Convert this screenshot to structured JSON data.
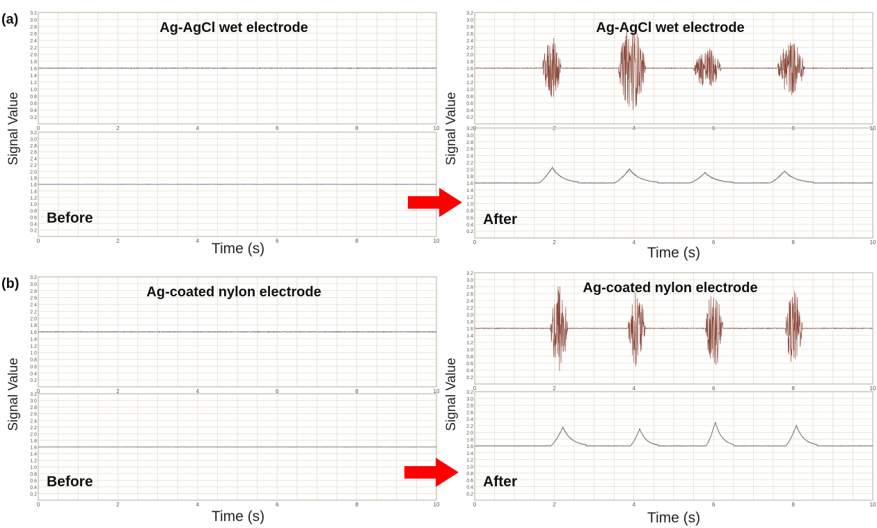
{
  "figure": {
    "panel_labels": [
      "(a)",
      "(b)"
    ],
    "ylabel": "Signal Value",
    "xlabel": "Time (s)",
    "before_label": "Before",
    "after_label": "After",
    "colors": {
      "frame": "#bdb7a4",
      "grid": "#e3ddc9",
      "signal": "#8b4a3c",
      "baseline": "#8a8a8a",
      "arrow": "#ff0000"
    }
  },
  "chart_data": [
    {
      "id": "a-before-emg",
      "type": "line",
      "title": "Ag-AgCl wet electrode",
      "xlim": [
        0,
        10
      ],
      "ylim": [
        0,
        3.2
      ],
      "xticks": [
        0,
        2,
        4,
        6,
        8,
        10
      ],
      "yticks": [
        0.2,
        0.4,
        0.6,
        0.8,
        1.0,
        1.2,
        1.4,
        1.6,
        1.8,
        2.0,
        2.2,
        2.4,
        2.6,
        2.8,
        3.0,
        3.2
      ],
      "signal": "raw",
      "baseline": 1.6,
      "bursts": []
    },
    {
      "id": "a-before-env",
      "type": "line",
      "title": "",
      "label": "Before",
      "xlim": [
        0,
        10
      ],
      "ylim": [
        0,
        3.2
      ],
      "xticks": [
        0,
        2,
        4,
        6,
        8,
        10
      ],
      "yticks": [
        0.2,
        0.4,
        0.6,
        0.8,
        1.0,
        1.2,
        1.4,
        1.6,
        1.8,
        2.0,
        2.2,
        2.4,
        2.6,
        2.8,
        3.0,
        3.2
      ],
      "signal": "envelope",
      "baseline": 1.6,
      "bursts": []
    },
    {
      "id": "a-after-emg",
      "type": "line",
      "title": "Ag-AgCl wet electrode",
      "xlim": [
        0,
        10
      ],
      "ylim": [
        0,
        3.2
      ],
      "xticks": [
        0,
        2,
        4,
        6,
        8,
        10
      ],
      "yticks": [
        0.2,
        0.4,
        0.6,
        0.8,
        1.0,
        1.2,
        1.4,
        1.6,
        1.8,
        2.0,
        2.2,
        2.4,
        2.6,
        2.8,
        3.0,
        3.2
      ],
      "signal": "raw",
      "baseline": 1.6,
      "bursts": [
        {
          "start": 1.7,
          "end": 2.25,
          "peak": 2.5
        },
        {
          "start": 3.6,
          "end": 4.4,
          "peak": 2.8
        },
        {
          "start": 5.5,
          "end": 6.3,
          "peak": 2.2
        },
        {
          "start": 7.6,
          "end": 8.4,
          "peak": 2.4
        }
      ]
    },
    {
      "id": "a-after-env",
      "type": "line",
      "title": "",
      "label": "After",
      "xlim": [
        0,
        10
      ],
      "ylim": [
        0,
        3.2
      ],
      "xticks": [
        0,
        2,
        4,
        6,
        8,
        10
      ],
      "yticks": [
        0.2,
        0.4,
        0.6,
        0.8,
        1.0,
        1.2,
        1.4,
        1.6,
        1.8,
        2.0,
        2.2,
        2.4,
        2.6,
        2.8,
        3.0,
        3.2
      ],
      "signal": "envelope",
      "baseline": 1.6,
      "bursts": [
        {
          "start": 1.6,
          "end": 2.6,
          "peak": 2.05
        },
        {
          "start": 3.5,
          "end": 4.6,
          "peak": 2.0
        },
        {
          "start": 5.4,
          "end": 6.5,
          "peak": 1.9
        },
        {
          "start": 7.4,
          "end": 8.5,
          "peak": 1.95
        }
      ]
    },
    {
      "id": "b-before-emg",
      "type": "line",
      "title": "Ag-coated nylon electrode",
      "xlim": [
        0,
        10
      ],
      "ylim": [
        0,
        3.2
      ],
      "xticks": [
        0,
        2,
        4,
        6,
        8,
        10
      ],
      "yticks": [
        0.2,
        0.4,
        0.6,
        0.8,
        1.0,
        1.2,
        1.4,
        1.6,
        1.8,
        2.0,
        2.2,
        2.4,
        2.6,
        2.8,
        3.0,
        3.2
      ],
      "signal": "raw",
      "baseline": 1.6,
      "bursts": []
    },
    {
      "id": "b-before-env",
      "type": "line",
      "title": "",
      "label": "Before",
      "xlim": [
        0,
        10
      ],
      "ylim": [
        0,
        3.2
      ],
      "xticks": [
        0,
        2,
        4,
        6,
        8,
        10
      ],
      "yticks": [
        0.2,
        0.4,
        0.6,
        0.8,
        1.0,
        1.2,
        1.4,
        1.6,
        1.8,
        2.0,
        2.2,
        2.4,
        2.6,
        2.8,
        3.0,
        3.2
      ],
      "signal": "envelope",
      "baseline": 1.6,
      "bursts": []
    },
    {
      "id": "b-after-emg",
      "type": "line",
      "title": "Ag-coated nylon electrode",
      "xlim": [
        0,
        10
      ],
      "ylim": [
        0,
        3.2
      ],
      "xticks": [
        0,
        2,
        4,
        6,
        8,
        10
      ],
      "yticks": [
        0.2,
        0.4,
        0.6,
        0.8,
        1.0,
        1.2,
        1.4,
        1.6,
        1.8,
        2.0,
        2.2,
        2.4,
        2.6,
        2.8,
        3.0,
        3.2
      ],
      "signal": "raw",
      "baseline": 1.6,
      "bursts": [
        {
          "start": 1.9,
          "end": 2.4,
          "peak": 3.0
        },
        {
          "start": 3.85,
          "end": 4.35,
          "peak": 2.7
        },
        {
          "start": 5.8,
          "end": 6.3,
          "peak": 2.8
        },
        {
          "start": 7.8,
          "end": 8.3,
          "peak": 2.7
        }
      ]
    },
    {
      "id": "b-after-env",
      "type": "line",
      "title": "",
      "label": "After",
      "xlim": [
        0,
        10
      ],
      "ylim": [
        0,
        3.2
      ],
      "xticks": [
        0,
        2,
        4,
        6,
        8,
        10
      ],
      "yticks": [
        0.2,
        0.4,
        0.6,
        0.8,
        1.0,
        1.2,
        1.4,
        1.6,
        1.8,
        2.0,
        2.2,
        2.4,
        2.6,
        2.8,
        3.0,
        3.2
      ],
      "signal": "envelope",
      "baseline": 1.6,
      "bursts": [
        {
          "start": 1.9,
          "end": 2.8,
          "peak": 2.15
        },
        {
          "start": 3.9,
          "end": 4.6,
          "peak": 2.1
        },
        {
          "start": 5.8,
          "end": 6.5,
          "peak": 2.3
        },
        {
          "start": 7.8,
          "end": 8.6,
          "peak": 2.2
        }
      ]
    }
  ]
}
